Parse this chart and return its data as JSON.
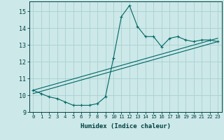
{
  "xlabel": "Humidex (Indice chaleur)",
  "ylabel": "",
  "background_color": "#cce8e8",
  "grid_color": "#aacfcf",
  "line_color": "#006666",
  "xlim": [
    -0.5,
    23.5
  ],
  "ylim": [
    9,
    15.6
  ],
  "xticks": [
    0,
    1,
    2,
    3,
    4,
    5,
    6,
    7,
    8,
    9,
    10,
    11,
    12,
    13,
    14,
    15,
    16,
    17,
    18,
    19,
    20,
    21,
    22,
    23
  ],
  "yticks": [
    9,
    10,
    11,
    12,
    13,
    14,
    15
  ],
  "series1_x": [
    0,
    1,
    2,
    3,
    4,
    5,
    6,
    7,
    8,
    9,
    10,
    11,
    12,
    13,
    14,
    15,
    16,
    17,
    18,
    19,
    20,
    21,
    22,
    23
  ],
  "series1_y": [
    10.3,
    10.1,
    9.9,
    9.8,
    9.6,
    9.4,
    9.4,
    9.4,
    9.5,
    9.9,
    12.2,
    14.7,
    15.35,
    14.1,
    13.5,
    13.5,
    12.9,
    13.4,
    13.5,
    13.3,
    13.2,
    13.3,
    13.3,
    13.2
  ],
  "series2_x": [
    0,
    23
  ],
  "series2_y": [
    10.1,
    13.2
  ],
  "series3_x": [
    0,
    23
  ],
  "series3_y": [
    10.3,
    13.4
  ]
}
